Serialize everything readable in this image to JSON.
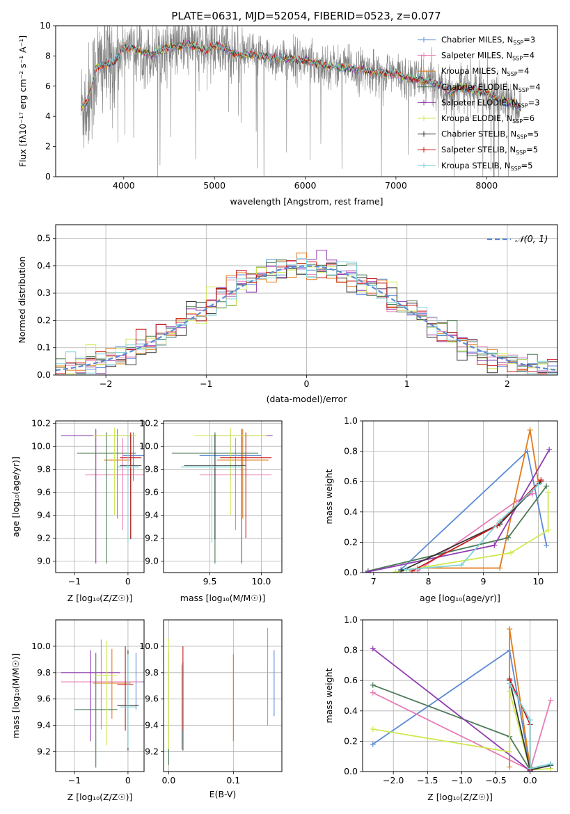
{
  "figure": {
    "title": "PLATE=0631, MJD=52054, FIBERID=0523, z=0.077"
  },
  "colors": {
    "chab_miles": "#5b8ad6",
    "salp_miles": "#e87cb5",
    "kroupa_miles": "#e07b1a",
    "chab_elodie": "#4b7a56",
    "salp_elodie": "#8f3bb0",
    "kroupa_elodie": "#cde94e",
    "chab_stelib": "#333333",
    "salp_stelib": "#c91818",
    "kroupa_stelib": "#7fd3d9",
    "data": "#808080"
  },
  "chart_data": [
    {
      "id": "spectrum",
      "type": "line",
      "xlabel": "wavelength [Angstrom, rest frame]",
      "ylabel": "Flux [fλ10⁻¹⁷ erg cm⁻² s⁻¹ A⁻¹]",
      "xlim": [
        3250,
        8780
      ],
      "ylim": [
        0,
        10
      ],
      "xticks": [
        "4000",
        "5000",
        "6000",
        "7000",
        "8000"
      ],
      "yticks": [
        "0",
        "2",
        "4",
        "6",
        "8",
        "10"
      ],
      "legend_position": "right",
      "model_continuum": {
        "x": [
          3530,
          3600,
          3700,
          3800,
          3900,
          4000,
          4100,
          4200,
          4300,
          4400,
          4500,
          4600,
          4700,
          4800,
          4900,
          5000,
          5100,
          5200,
          5300,
          5400,
          5500,
          5600,
          5700,
          5800,
          5900,
          6000,
          6100,
          6200,
          6300,
          6400,
          6500,
          6600,
          6700,
          6800,
          6900,
          7000,
          7100,
          7200,
          7300,
          7400,
          7500,
          7600,
          7700,
          7800,
          7900,
          8000,
          8100,
          8200,
          8300,
          8380
        ],
        "y": [
          4.6,
          4.9,
          7.2,
          7.5,
          7.6,
          8.6,
          8.5,
          8.3,
          8.0,
          8.4,
          8.5,
          8.6,
          8.8,
          8.6,
          8.3,
          8.7,
          8.6,
          8.2,
          8.0,
          8.1,
          8.0,
          7.9,
          7.85,
          7.8,
          7.75,
          7.7,
          7.5,
          7.4,
          7.3,
          7.2,
          7.2,
          7.1,
          7.0,
          6.9,
          6.85,
          6.8,
          6.6,
          6.5,
          6.4,
          6.3,
          6.0,
          5.6,
          5.9,
          5.8,
          5.7,
          5.5,
          5.3,
          5.0,
          4.8,
          4.5
        ]
      },
      "series": [
        {
          "name": "Chabrier MILES, N",
          "sub": "SSP",
          "suffix": "=3",
          "color_key": "chab_miles"
        },
        {
          "name": "Salpeter MILES, N",
          "sub": "SSP",
          "suffix": "=4",
          "color_key": "salp_miles"
        },
        {
          "name": "Kroupa MILES, N",
          "sub": "SSP",
          "suffix": "=4",
          "color_key": "kroupa_miles"
        },
        {
          "name": "Chabrier ELODIE, N",
          "sub": "SSP",
          "suffix": "=4",
          "color_key": "chab_elodie"
        },
        {
          "name": "Salpeter ELODIE, N",
          "sub": "SSP",
          "suffix": "=3",
          "color_key": "salp_elodie"
        },
        {
          "name": "Kroupa ELODIE, N",
          "sub": "SSP",
          "suffix": "=6",
          "color_key": "kroupa_elodie"
        },
        {
          "name": "Chabrier STELIB, N",
          "sub": "SSP",
          "suffix": "=5",
          "color_key": "chab_stelib"
        },
        {
          "name": "Salpeter STELIB, N",
          "sub": "SSP",
          "suffix": "=5",
          "color_key": "salp_stelib"
        },
        {
          "name": "Kroupa STELIB, N",
          "sub": "SSP",
          "suffix": "=5",
          "color_key": "kroupa_stelib"
        }
      ]
    },
    {
      "id": "residual-histogram",
      "type": "bar",
      "xlabel": "(data-model)/error",
      "ylabel": "Normed distribution",
      "xlim": [
        -2.5,
        2.5
      ],
      "ylim": [
        0,
        0.55
      ],
      "xticks": [
        "−2",
        "−1",
        "0",
        "1",
        "2"
      ],
      "yticks": [
        "0.0",
        "0.1",
        "0.2",
        "0.3",
        "0.4",
        "0.5"
      ],
      "grid": true,
      "legend": "𝒩(0, 1)",
      "legend_position": "top-right",
      "bin_width": 0.1,
      "gaussian": {
        "mean": 0,
        "sigma": 1
      }
    },
    {
      "id": "age-vs-Z",
      "type": "scatter",
      "xlabel": "Z [log₁₀(Z/Z☉)]",
      "ylabel": "age  [log₁₀(age/yr)]",
      "xlim": [
        -1.35,
        0.3
      ],
      "ylim": [
        8.9,
        10.22
      ],
      "xticks": [
        "−1",
        "0"
      ],
      "yticks": [
        "9.0",
        "9.2",
        "9.4",
        "9.6",
        "9.8",
        "10.0",
        "10.2"
      ],
      "grid": true,
      "points": [
        {
          "x": 0.1,
          "y": 9.92,
          "xerr": 0.2,
          "ylo": 9.7,
          "yhi": 10.12,
          "color_key": "chab_miles"
        },
        {
          "x": -0.1,
          "y": 9.75,
          "xerr": 0.7,
          "ylo": 9.27,
          "yhi": 10.07,
          "color_key": "salp_miles"
        },
        {
          "x": -0.2,
          "y": 9.88,
          "xerr": 0.25,
          "ylo": 9.37,
          "yhi": 10.15,
          "color_key": "kroupa_miles"
        },
        {
          "x": -0.4,
          "y": 9.94,
          "xerr": 0.55,
          "ylo": 8.98,
          "yhi": 10.12,
          "color_key": "chab_elodie"
        },
        {
          "x": -0.6,
          "y": 10.09,
          "xerr": 0.65,
          "ylo": 8.98,
          "yhi": 10.15,
          "color_key": "salp_elodie"
        },
        {
          "x": -0.25,
          "y": 10.09,
          "xerr": 0.4,
          "ylo": 9.4,
          "yhi": 10.16,
          "color_key": "kroupa_elodie"
        },
        {
          "x": 0.05,
          "y": 9.83,
          "xerr": 0.2,
          "ylo": 9.19,
          "yhi": 10.1,
          "color_key": "chab_stelib"
        },
        {
          "x": 0.05,
          "y": 9.9,
          "xerr": 0.2,
          "ylo": 9.2,
          "yhi": 10.12,
          "color_key": "salp_stelib"
        },
        {
          "x": 0.0,
          "y": 9.82,
          "xerr": 0.2,
          "ylo": 9.16,
          "yhi": 10.09,
          "color_key": "kroupa_stelib"
        }
      ]
    },
    {
      "id": "age-vs-mass",
      "type": "scatter",
      "xlabel": "mass [log₁₀(M/M☉)]",
      "ylabel": "",
      "xlim": [
        9.05,
        10.2
      ],
      "ylim": [
        8.9,
        10.22
      ],
      "xticks": [
        "9.5",
        "10.0"
      ],
      "yticks": [
        "9.0",
        "9.2",
        "9.4",
        "9.6",
        "9.8",
        "10.0",
        "10.2"
      ],
      "grid": true,
      "points": [
        {
          "x": 9.7,
          "y": 9.92,
          "xerr": 0.3,
          "ylo": 9.7,
          "yhi": 10.12,
          "color_key": "chab_miles"
        },
        {
          "x": 9.75,
          "y": 9.75,
          "xerr": 0.35,
          "ylo": 9.27,
          "yhi": 10.07,
          "color_key": "salp_miles"
        },
        {
          "x": 9.82,
          "y": 9.88,
          "xerr": 0.25,
          "ylo": 9.37,
          "yhi": 10.15,
          "color_key": "kroupa_miles"
        },
        {
          "x": 9.55,
          "y": 9.94,
          "xerr": 0.42,
          "ylo": 8.98,
          "yhi": 10.12,
          "color_key": "chab_elodie"
        },
        {
          "x": 9.81,
          "y": 10.09,
          "xerr": 0.3,
          "ylo": 8.98,
          "yhi": 10.15,
          "color_key": "salp_elodie"
        },
        {
          "x": 9.7,
          "y": 10.09,
          "xerr": 0.35,
          "ylo": 9.4,
          "yhi": 10.16,
          "color_key": "kroupa_elodie"
        },
        {
          "x": 9.55,
          "y": 9.83,
          "xerr": 0.3,
          "ylo": 9.19,
          "yhi": 10.1,
          "color_key": "chab_stelib"
        },
        {
          "x": 9.85,
          "y": 9.9,
          "xerr": 0.25,
          "ylo": 9.2,
          "yhi": 10.12,
          "color_key": "salp_stelib"
        },
        {
          "x": 9.52,
          "y": 9.82,
          "xerr": 0.3,
          "ylo": 9.16,
          "yhi": 10.09,
          "color_key": "kroupa_stelib"
        }
      ]
    },
    {
      "id": "weight-vs-age",
      "type": "line",
      "xlabel": "age  [log₁₀(age/yr)]",
      "ylabel": "mass weight",
      "xlim": [
        6.8,
        10.35
      ],
      "ylim": [
        0,
        1.0
      ],
      "xticks": [
        "7",
        "8",
        "9",
        "10"
      ],
      "yticks": [
        "0.0",
        "0.2",
        "0.4",
        "0.6",
        "0.8",
        "1.0"
      ],
      "grid": true,
      "series": [
        {
          "color_key": "chab_miles",
          "x": [
            7.5,
            9.8,
            10.15
          ],
          "y": [
            0.02,
            0.8,
            0.18
          ]
        },
        {
          "color_key": "salp_miles",
          "x": [
            7.8,
            9.6,
            9.9
          ],
          "y": [
            0.01,
            0.47,
            0.52
          ]
        },
        {
          "color_key": "kroupa_miles",
          "x": [
            7.8,
            9.3,
            9.85,
            10.0
          ],
          "y": [
            0.03,
            0.03,
            0.94,
            0.6
          ]
        },
        {
          "color_key": "chab_elodie",
          "x": [
            6.9,
            9.45,
            10.15
          ],
          "y": [
            0.01,
            0.23,
            0.57
          ]
        },
        {
          "color_key": "salp_elodie",
          "x": [
            6.9,
            9.2,
            10.2
          ],
          "y": [
            0.005,
            0.18,
            0.81
          ]
        },
        {
          "color_key": "kroupa_elodie",
          "x": [
            7.4,
            9.5,
            10.18,
            10.18
          ],
          "y": [
            0.005,
            0.13,
            0.28,
            0.53
          ]
        },
        {
          "color_key": "chab_stelib",
          "x": [
            7.5,
            9.3,
            10.05
          ],
          "y": [
            0.01,
            0.32,
            0.6
          ]
        },
        {
          "color_key": "salp_stelib",
          "x": [
            7.7,
            9.25,
            10.05
          ],
          "y": [
            0.01,
            0.31,
            0.61
          ]
        },
        {
          "color_key": "kroupa_stelib",
          "x": [
            7.6,
            8.6,
            9.3,
            10.0
          ],
          "y": [
            0.02,
            0.05,
            0.34,
            0.58
          ]
        }
      ]
    },
    {
      "id": "mass-vs-Z",
      "type": "scatter",
      "xlabel": "Z [log₁₀(Z/Z☉)]",
      "ylabel": "mass [log₁₀(M/M☉)]",
      "xlim": [
        -1.35,
        0.3
      ],
      "ylim": [
        9.05,
        10.2
      ],
      "xticks": [
        "−1",
        "0"
      ],
      "yticks": [
        "9.2",
        "9.4",
        "9.6",
        "9.8",
        "10.0"
      ],
      "grid": true,
      "points": [
        {
          "x": 0.15,
          "y": 9.73,
          "xerr": 0.15,
          "ylo": 9.52,
          "yhi": 9.95,
          "color_key": "chab_miles"
        },
        {
          "x": -0.5,
          "y": 9.73,
          "xerr": 0.75,
          "ylo": 9.37,
          "yhi": 10.05,
          "color_key": "salp_miles"
        },
        {
          "x": -0.3,
          "y": 9.72,
          "xerr": 0.35,
          "ylo": 9.45,
          "yhi": 9.98,
          "color_key": "kroupa_miles"
        },
        {
          "x": -0.6,
          "y": 9.52,
          "xerr": 0.4,
          "ylo": 9.08,
          "yhi": 9.95,
          "color_key": "chab_elodie"
        },
        {
          "x": -0.7,
          "y": 9.8,
          "xerr": 0.55,
          "ylo": 9.28,
          "yhi": 9.97,
          "color_key": "salp_elodie"
        },
        {
          "x": -0.4,
          "y": 9.78,
          "xerr": 0.2,
          "ylo": 9.25,
          "yhi": 10.04,
          "color_key": "kroupa_elodie"
        },
        {
          "x": 0.0,
          "y": 9.55,
          "xerr": 0.2,
          "ylo": 9.21,
          "yhi": 9.97,
          "color_key": "chab_stelib"
        },
        {
          "x": -0.05,
          "y": 9.71,
          "xerr": 0.15,
          "ylo": 9.36,
          "yhi": 10.0,
          "color_key": "salp_stelib"
        },
        {
          "x": 0.0,
          "y": 9.54,
          "xerr": 0.15,
          "ylo": 9.23,
          "yhi": 9.94,
          "color_key": "kroupa_stelib"
        }
      ]
    },
    {
      "id": "mass-vs-ebv",
      "type": "scatter",
      "xlabel": "E(B-V)",
      "ylabel": "",
      "xlim": [
        -0.008,
        0.175
      ],
      "ylim": [
        9.05,
        10.2
      ],
      "xticks": [
        "0.0",
        "0.1"
      ],
      "yticks": [
        "9.2",
        "9.4",
        "9.6",
        "9.8",
        "10.0"
      ],
      "grid": true,
      "points": [
        {
          "x": 0.163,
          "y": 9.73,
          "ylo": 9.47,
          "yhi": 9.97,
          "color_key": "chab_miles"
        },
        {
          "x": 0.153,
          "y": 9.73,
          "ylo": 9.4,
          "yhi": 10.14,
          "color_key": "salp_miles"
        },
        {
          "x": 0.1,
          "y": 9.72,
          "ylo": 9.28,
          "yhi": 9.94,
          "color_key": "kroupa_miles"
        },
        {
          "x": 0.0,
          "y": 9.52,
          "ylo": 9.1,
          "yhi": 9.95,
          "color_key": "chab_elodie"
        },
        {
          "x": 0.0,
          "y": 9.8,
          "ylo": 9.3,
          "yhi": 9.97,
          "color_key": "salp_elodie"
        },
        {
          "x": 0.0,
          "y": 9.78,
          "ylo": 9.22,
          "yhi": 10.06,
          "color_key": "kroupa_elodie"
        },
        {
          "x": 0.022,
          "y": 9.55,
          "ylo": 9.21,
          "yhi": 9.88,
          "color_key": "chab_stelib"
        },
        {
          "x": 0.022,
          "y": 9.71,
          "ylo": 9.36,
          "yhi": 10.0,
          "color_key": "salp_stelib"
        },
        {
          "x": 0.02,
          "y": 9.54,
          "ylo": 9.22,
          "yhi": 9.86,
          "color_key": "kroupa_stelib"
        }
      ]
    },
    {
      "id": "weight-vs-Z",
      "type": "line",
      "xlabel": "Z [log₁₀(Z/Z☉)]",
      "ylabel": "mass weight",
      "xlim": [
        -2.45,
        0.4
      ],
      "ylim": [
        0,
        1.0
      ],
      "xticks": [
        "−2.0",
        "−1.5",
        "−1.0",
        "−0.5",
        "0.0"
      ],
      "yticks": [
        "0.0",
        "0.2",
        "0.4",
        "0.6",
        "0.8",
        "1.0"
      ],
      "grid": true,
      "series": [
        {
          "color_key": "chab_miles",
          "x": [
            -2.3,
            -0.3,
            0.0,
            0.3
          ],
          "y": [
            0.18,
            0.8,
            0.02,
            0.05
          ]
        },
        {
          "color_key": "salp_miles",
          "x": [
            -2.3,
            0.0,
            0.3
          ],
          "y": [
            0.52,
            0.01,
            0.47
          ]
        },
        {
          "color_key": "kroupa_miles",
          "x": [
            -0.3,
            -0.3,
            0.0
          ],
          "y": [
            0.03,
            0.94,
            0.03
          ]
        },
        {
          "color_key": "chab_elodie",
          "x": [
            -2.3,
            -0.3,
            0.0
          ],
          "y": [
            0.57,
            0.23,
            0.01
          ]
        },
        {
          "color_key": "salp_elodie",
          "x": [
            -2.3,
            0.0
          ],
          "y": [
            0.81,
            0.005
          ]
        },
        {
          "color_key": "kroupa_elodie",
          "x": [
            -2.3,
            -0.3,
            -0.3,
            0.0,
            0.3
          ],
          "y": [
            0.28,
            0.13,
            0.53,
            0.01,
            0.02
          ]
        },
        {
          "color_key": "chab_stelib",
          "x": [
            -0.3,
            0.0,
            0.3
          ],
          "y": [
            0.6,
            0.01,
            0.04
          ]
        },
        {
          "color_key": "salp_stelib",
          "x": [
            -0.3,
            0.0,
            0.0
          ],
          "y": [
            0.61,
            0.31,
            0.01
          ]
        },
        {
          "color_key": "kroupa_stelib",
          "x": [
            -0.3,
            0.0,
            0.0,
            0.3
          ],
          "y": [
            0.58,
            0.34,
            0.02,
            0.05
          ]
        }
      ]
    }
  ]
}
